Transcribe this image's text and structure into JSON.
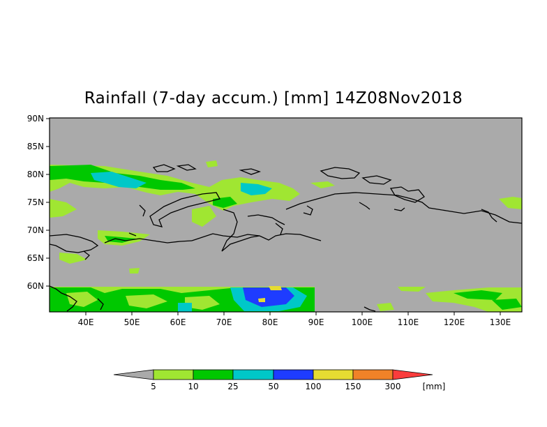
{
  "title": "Rainfall (7-day accum.) [mm] 14Z08Nov2018",
  "map": {
    "lat_labels": [
      "90N",
      "85N",
      "80N",
      "75N",
      "70N",
      "65N",
      "60N"
    ],
    "lon_labels": [
      "40E",
      "50E",
      "60E",
      "70E",
      "80E",
      "90E",
      "100E",
      "110E",
      "120E",
      "130E"
    ],
    "lat_range": [
      55.5,
      90
    ],
    "lon_range": [
      32,
      135
    ],
    "background_color": "#aaaaaa"
  },
  "colorbar": {
    "labels": [
      "5",
      "10",
      "25",
      "50",
      "100",
      "150",
      "300"
    ],
    "unit": "[mm]",
    "colors": [
      "#aaaaaa",
      "#a0e632",
      "#00c800",
      "#00c8c8",
      "#1e3cff",
      "#e6dc32",
      "#f08228",
      "#fa3c3c"
    ]
  }
}
